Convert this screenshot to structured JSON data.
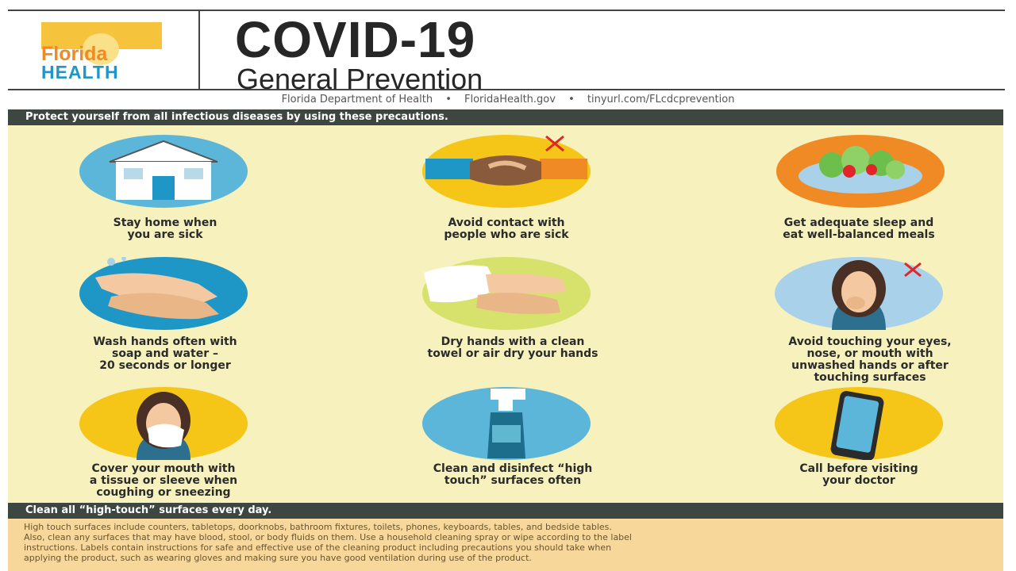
{
  "header": {
    "logo_line1": "Florida",
    "logo_line2": "HEALTH",
    "title": "COVID-19",
    "subtitle": "General Prevention"
  },
  "source": {
    "org": "Florida Department of Health",
    "site": "FloridaHealth.gov",
    "link": "tinyurl.com/FLcdcprevention",
    "separator": "•"
  },
  "bands": {
    "top": "Protect yourself from all infectious diseases by using these precautions.",
    "bottom": "Clean all “high-touch” surfaces every day."
  },
  "tips": [
    {
      "icon": "house-icon",
      "line1": "Stay home when",
      "line2": "you are sick",
      "line3": "",
      "line4": "",
      "color": "#5cb6d9"
    },
    {
      "icon": "handshake-icon",
      "line1": "Avoid contact with",
      "line2": "people who are sick",
      "line3": "",
      "line4": "",
      "color": "#f5c518"
    },
    {
      "icon": "food-bowl-icon",
      "line1": "Get adequate sleep and",
      "line2": "eat well-balanced meals",
      "line3": "",
      "line4": "",
      "color": "#f08a24"
    },
    {
      "icon": "washing-hands-icon",
      "line1": "Wash hands often with",
      "line2": "soap and water –",
      "line3": "20 seconds or longer",
      "line4": "",
      "color": "#1f97c6"
    },
    {
      "icon": "towel-hands-icon",
      "line1": "Dry hands with a clean",
      "line2": "towel or air dry your hands",
      "line3": "",
      "line4": "",
      "color": "#d6e26b"
    },
    {
      "icon": "touching-face-icon",
      "line1": "Avoid touching your eyes,",
      "line2": "nose, or mouth with",
      "line3": "unwashed hands or after",
      "line4": "touching surfaces",
      "color": "#a9d2ea"
    },
    {
      "icon": "tissue-sneeze-icon",
      "line1": "Cover your mouth with",
      "line2": "a tissue or sleeve when",
      "line3": "coughing or sneezing",
      "line4": "",
      "color": "#f5c518"
    },
    {
      "icon": "spray-bottle-icon",
      "line1": "Clean and disinfect “high",
      "line2": "touch” surfaces often",
      "line3": "",
      "line4": "",
      "color": "#5cb6d9"
    },
    {
      "icon": "phone-icon",
      "line1": "Call before visiting",
      "line2": "your doctor",
      "line3": "",
      "line4": "",
      "color": "#f5c518"
    }
  ],
  "bottom_text": {
    "line1": "High touch surfaces include counters, tabletops, doorknobs, bathroom fixtures, toilets, phones, keyboards, tables, and bedside tables.",
    "line2": "Also, clean any surfaces that may have blood, stool, or body fluids on them. Use a household cleaning spray or wipe according to the label",
    "line3": "instructions. Labels contain instructions for safe and effective use of the cleaning product including precautions you should take when",
    "line4": "applying the product, such as wearing gloves and making sure you have good ventilation during use of the product."
  }
}
